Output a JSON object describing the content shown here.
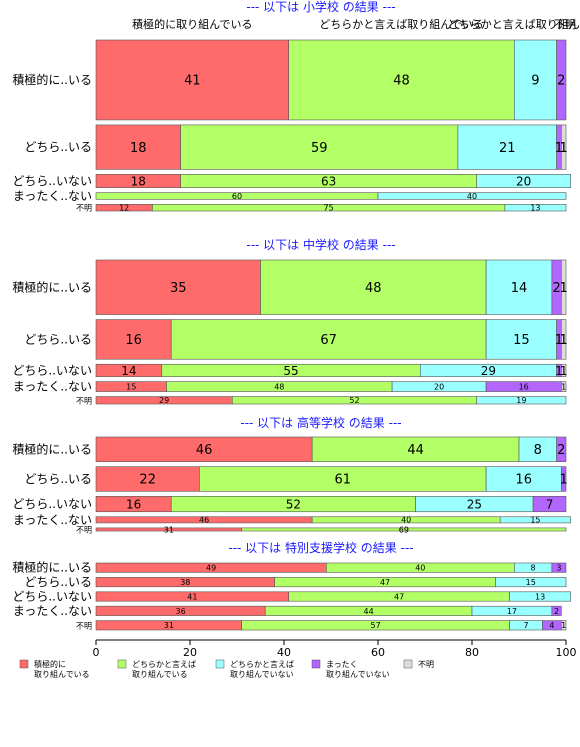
{
  "chart_data": {
    "type": "bar",
    "orientation": "horizontal",
    "stacked": true,
    "normalized_percent": true,
    "xlim": [
      0,
      100
    ],
    "xticks": [
      0,
      20,
      40,
      60,
      80,
      100
    ],
    "grid": false,
    "legend_position": "bottom",
    "series_names": [
      "積極的に\n取り組んでいる",
      "どちらかと言えば\n取り組んでいる",
      "どちらかと言えば\n取り組んでいない",
      "まったく\n取り組んでいない",
      "不明"
    ],
    "colors": [
      "#ff6b6b",
      "#b3ff66",
      "#99ffff",
      "#b366ff",
      "#dddddd"
    ],
    "column_header": [
      "積極的に取り組んでいる",
      "どちらかと言えば取り組んでいる",
      "どちらかと言えば取り組んでいない",
      "不明"
    ],
    "panels": [
      {
        "title": "--- 以下は 小学校 の結果 ---",
        "rows": [
          {
            "label": "積極的に..いる",
            "values": [
              41,
              48,
              9,
              2,
              0
            ],
            "width_share": 36
          },
          {
            "label": "どちら..いる",
            "values": [
              18,
              59,
              21,
              1,
              1
            ],
            "width_share": 20
          },
          {
            "label": "どちら..いない",
            "values": [
              18,
              63,
              20,
              0,
              0
            ],
            "width_share": 6
          },
          {
            "label": "まったく..ない",
            "values": [
              0,
              60,
              40,
              0,
              0
            ],
            "width_share": 3
          },
          {
            "label": "不明",
            "values": [
              12,
              75,
              13,
              0,
              0
            ],
            "width_share": 3
          }
        ]
      },
      {
        "title": "--- 以下は 中学校 の結果 ---",
        "rows": [
          {
            "label": "積極的に..いる",
            "values": [
              35,
              48,
              14,
              2,
              1
            ],
            "width_share": 22
          },
          {
            "label": "どちら..いる",
            "values": [
              16,
              67,
              15,
              1,
              1
            ],
            "width_share": 16
          },
          {
            "label": "どちら..いない",
            "values": [
              14,
              55,
              29,
              1,
              1
            ],
            "width_share": 5
          },
          {
            "label": "まったく..ない",
            "values": [
              15,
              48,
              20,
              16,
              1
            ],
            "width_share": 4
          },
          {
            "label": "不明",
            "values": [
              29,
              52,
              19,
              0,
              0
            ],
            "width_share": 3
          }
        ]
      },
      {
        "title": "--- 以下は 高等学校 の結果 ---",
        "rows": [
          {
            "label": "積極的に..いる",
            "values": [
              46,
              44,
              8,
              2,
              0
            ],
            "width_share": 8
          },
          {
            "label": "どちら..いる",
            "values": [
              22,
              61,
              16,
              1,
              0
            ],
            "width_share": 8
          },
          {
            "label": "どちら..いない",
            "values": [
              16,
              52,
              25,
              7,
              0
            ],
            "width_share": 5
          },
          {
            "label": "まったく..ない",
            "values": [
              46,
              40,
              15,
              0,
              0
            ],
            "width_share": 2
          },
          {
            "label": "不明",
            "values": [
              31,
              69,
              0,
              0,
              0
            ],
            "width_share": 1
          }
        ]
      },
      {
        "title": "--- 以下は 特別支援学校 の結果 ---",
        "rows": [
          {
            "label": "積極的に..いる",
            "values": [
              49,
              40,
              8,
              3,
              0
            ],
            "width_share": 2
          },
          {
            "label": "どちら..いる",
            "values": [
              38,
              47,
              15,
              0,
              0
            ],
            "width_share": 2
          },
          {
            "label": "どちら..いない",
            "values": [
              41,
              47,
              13,
              0,
              0
            ],
            "width_share": 2
          },
          {
            "label": "まったく..ない",
            "values": [
              36,
              44,
              17,
              2,
              0
            ],
            "width_share": 2
          },
          {
            "label": "不明",
            "values": [
              31,
              57,
              7,
              4,
              1
            ],
            "width_share": 2
          }
        ]
      }
    ]
  }
}
